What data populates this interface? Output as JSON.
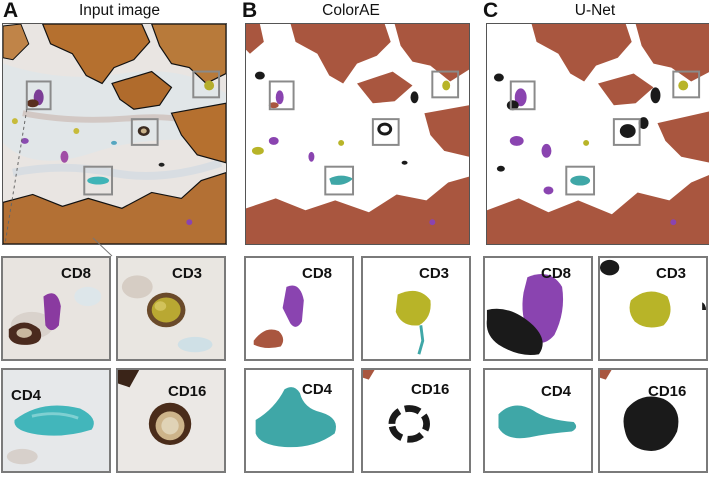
{
  "panels": {
    "A": {
      "letter": "A",
      "title": "Input image"
    },
    "B": {
      "letter": "B",
      "title": "ColorAE"
    },
    "C": {
      "letter": "C",
      "title": "U-Net"
    }
  },
  "crop_labels": {
    "cd8": "CD8",
    "cd3": "CD3",
    "cd4": "CD4",
    "cd16": "CD16"
  },
  "colors": {
    "cd8": "#8a44b0",
    "cd3": "#b8b428",
    "cd4": "#3fa7a7",
    "cd16": "#1a1a1a",
    "tumor": "#a9563f",
    "stain_brown": "#b5702f",
    "box": "#8a8a8a"
  }
}
